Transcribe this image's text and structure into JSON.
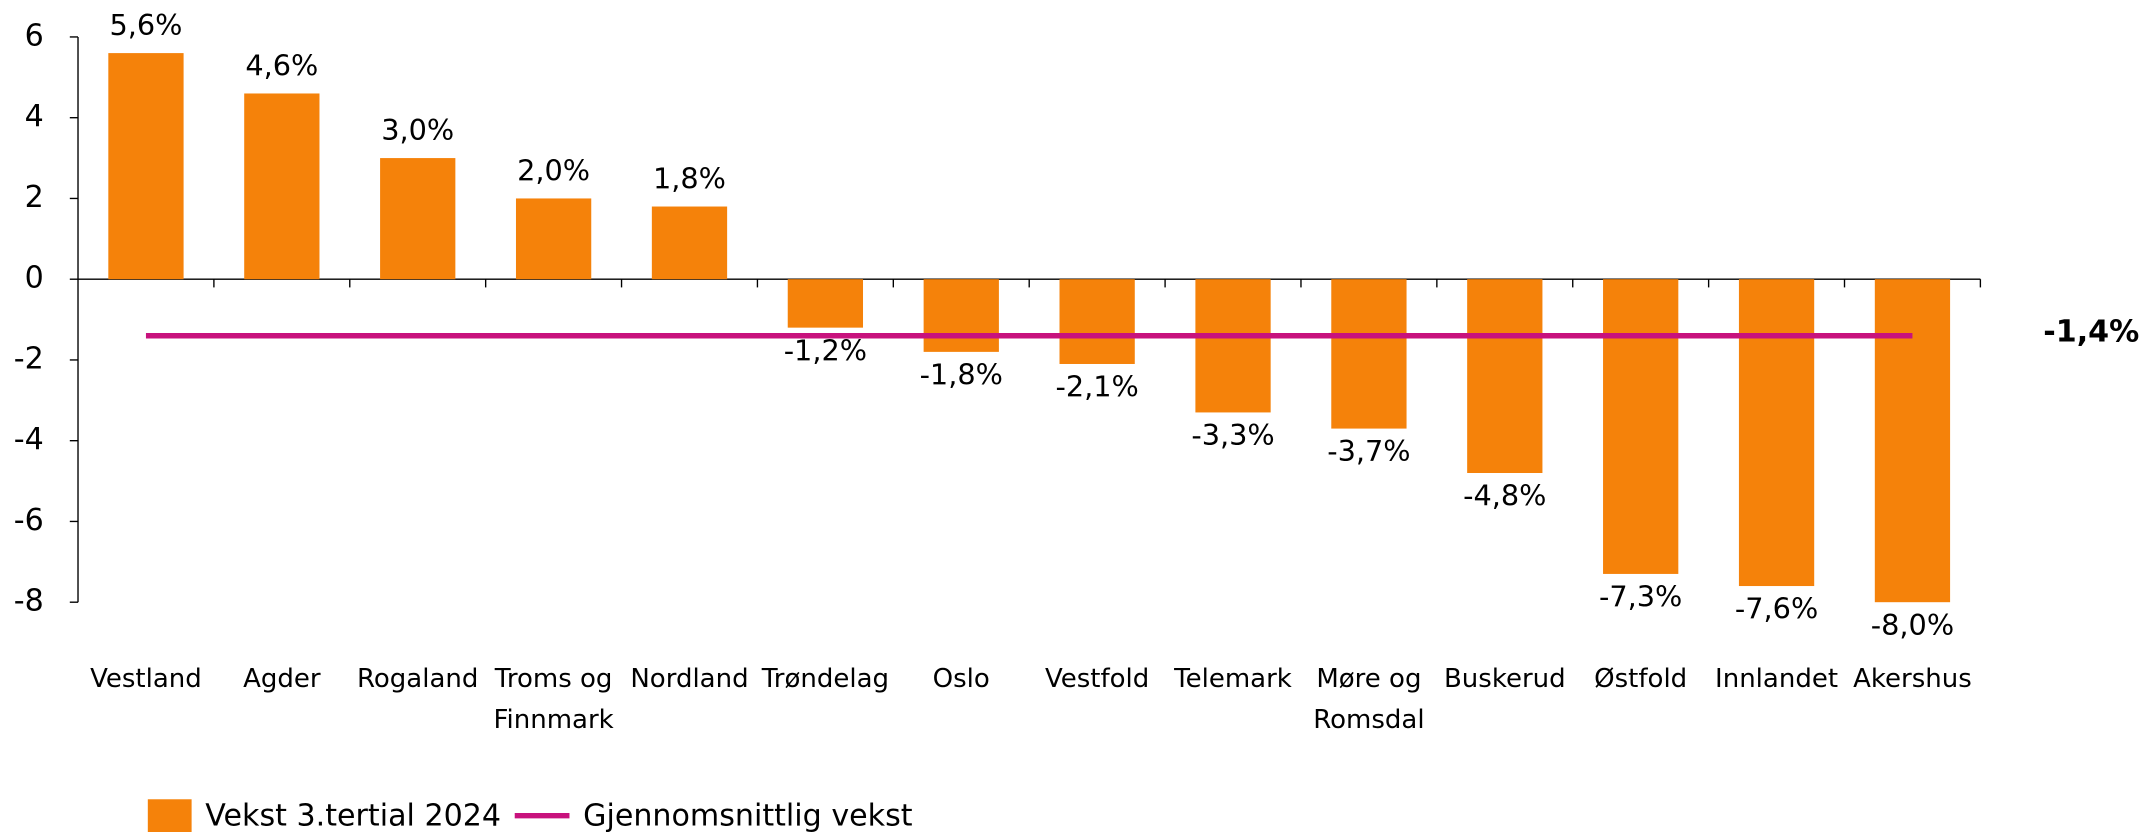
{
  "chart_data": {
    "type": "bar",
    "categories": [
      "Vestland",
      "Agder",
      "Rogaland",
      "Troms og Finnmark",
      "Nordland",
      "Trøndelag",
      "Oslo",
      "Vestfold",
      "Telemark",
      "Møre og Romsdal",
      "Buskerud",
      "Østfold",
      "Innlandet",
      "Akershus"
    ],
    "series": [
      {
        "name": "Vekst 3.tertial 2024",
        "color": "#f5820a",
        "type": "bar",
        "values": [
          5.6,
          4.6,
          3.0,
          2.0,
          1.8,
          -1.2,
          -1.8,
          -2.1,
          -3.3,
          -3.7,
          -4.8,
          -7.3,
          -7.6,
          -8.0
        ],
        "value_labels": [
          "5,6%",
          "4,6%",
          "3,0%",
          "2,0%",
          "1,8%",
          "-1,2%",
          "-1,8%",
          "-2,1%",
          "-3,3%",
          "-3,7%",
          "-4,8%",
          "-7,3%",
          "-7,6%",
          "-8,0%"
        ]
      },
      {
        "name": "Gjennomsnittlig vekst",
        "color": "#c8127d",
        "type": "line",
        "values": [
          -1.4,
          -1.4,
          -1.4,
          -1.4,
          -1.4,
          -1.4,
          -1.4,
          -1.4,
          -1.4,
          -1.4,
          -1.4,
          -1.4,
          -1.4,
          -1.4
        ],
        "end_label": "-1,4%"
      }
    ],
    "ylim": [
      -8,
      6
    ],
    "yticks": [
      -8,
      -6,
      -4,
      -2,
      0,
      2,
      4,
      6
    ],
    "grid": false,
    "legend": "bottom"
  }
}
